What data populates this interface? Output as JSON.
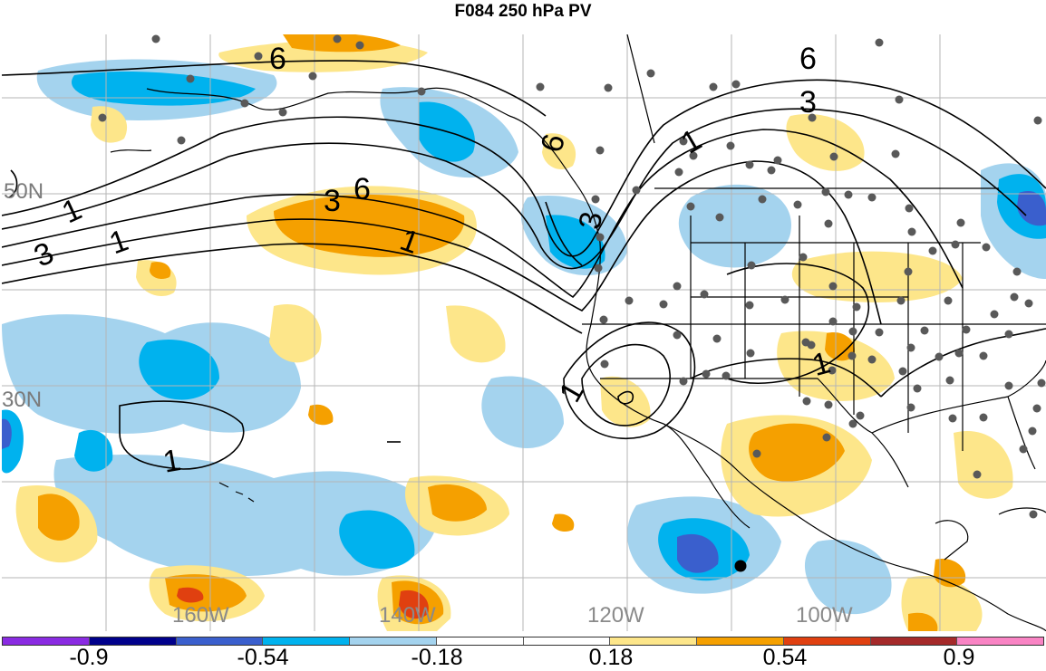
{
  "title": "F084 250 hPa PV",
  "lat_labels": [
    "50N",
    "30N"
  ],
  "lon_labels": [
    "160W",
    "140W",
    "120W",
    "100W"
  ],
  "contour_labels": [
    "6",
    "6",
    "6",
    "6",
    "3",
    "3",
    "3",
    "3",
    "1",
    "1",
    "1",
    "1",
    "1",
    "1",
    "1"
  ],
  "colorbar": {
    "colors": [
      "#8a2be2",
      "#00008b",
      "#3a5fcd",
      "#00b2ee",
      "#a4d3ee",
      "#ffffff",
      "#ffffff",
      "#fde68a",
      "#f5a000",
      "#e04010",
      "#a52a2a",
      "#f984c4"
    ],
    "labels": [
      "-0.9",
      "-0.54",
      "-0.18",
      "0.18",
      "0.54",
      "0.9"
    ]
  },
  "colors": {
    "negative_light": "#a4d3ee",
    "negative_mid": "#00b2ee",
    "negative_strong": "#3a5fcd",
    "positive_light": "#fde68a",
    "positive_mid": "#f5a000",
    "positive_strong": "#e04010",
    "stations": "#595959"
  }
}
